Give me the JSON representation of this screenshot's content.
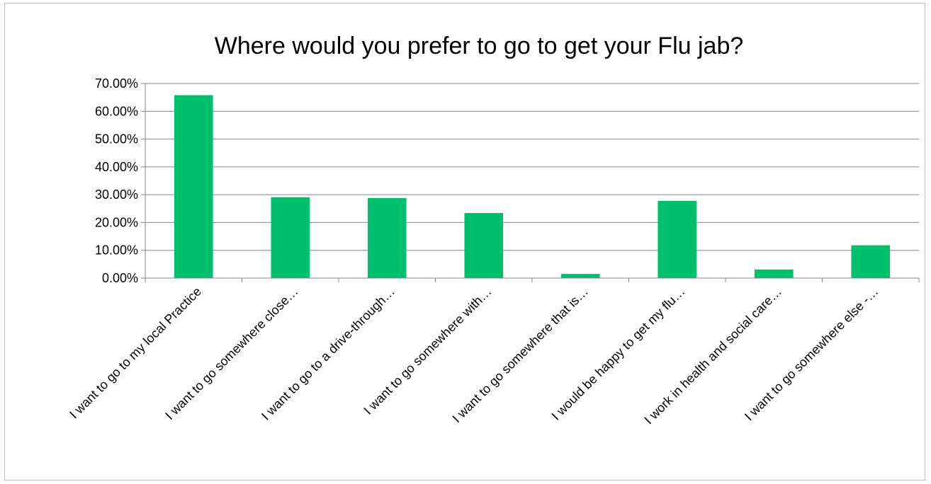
{
  "chart_data": {
    "type": "bar",
    "title": "Where would you prefer to go to get your Flu jab?",
    "xlabel": "",
    "ylabel": "",
    "ylim": [
      0,
      70
    ],
    "yticks": [
      "0.00%",
      "10.00%",
      "20.00%",
      "30.00%",
      "40.00%",
      "50.00%",
      "60.00%",
      "70.00%"
    ],
    "grid": true,
    "legend": "none",
    "bar_color": "#00c06e",
    "categories": [
      "I want to go to my local Practice",
      "I want to go somewhere close…",
      "I want to go to a drive-through…",
      "I want to go somewhere with…",
      "I want to go somewhere that is…",
      "I would be happy to get my flu…",
      "I work in health and social care…",
      "I want to go somewhere else -…"
    ],
    "values": [
      65.8,
      29.1,
      28.8,
      23.4,
      1.5,
      27.8,
      3.1,
      11.8
    ]
  }
}
